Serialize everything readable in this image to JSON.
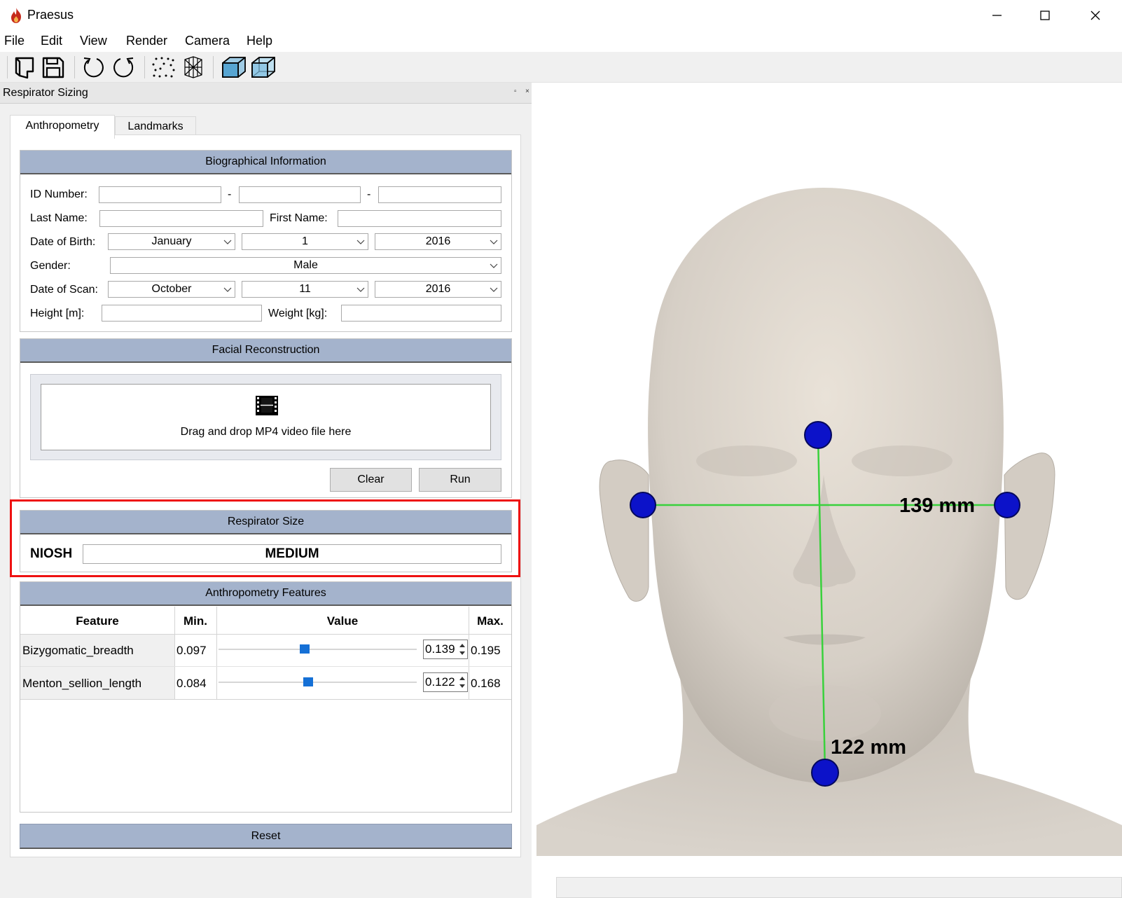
{
  "window": {
    "title": "Praesus"
  },
  "menu": [
    "File",
    "Edit",
    "View",
    "Render",
    "Camera",
    "Help"
  ],
  "toolbar": {
    "icons": [
      "open-file-icon",
      "save-icon",
      "rotate-left-icon",
      "rotate-right-icon",
      "point-cloud-icon",
      "wireframe-icon",
      "solid-cube-icon",
      "transparent-cube-icon"
    ]
  },
  "dock": {
    "title": "Respirator Sizing",
    "tabs": [
      "Anthropometry",
      "Landmarks"
    ],
    "bio": {
      "header": "Biographical Information",
      "id_label": "ID Number:",
      "id_sep": "-",
      "last_name_label": "Last Name:",
      "first_name_label": "First Name:",
      "dob_label": "Date of Birth:",
      "dob": {
        "month": "January",
        "day": "1",
        "year": "2016"
      },
      "gender_label": "Gender:",
      "gender": "Male",
      "scan_label": "Date of Scan:",
      "scan": {
        "month": "October",
        "day": "11",
        "year": "2016"
      },
      "height_label": "Height [m]:",
      "weight_label": "Weight [kg]:"
    },
    "facial": {
      "header": "Facial Reconstruction",
      "drop_text": "Drag and drop MP4 video file here",
      "clear": "Clear",
      "run": "Run"
    },
    "respirator": {
      "header": "Respirator Size",
      "standard": "NIOSH",
      "size": "MEDIUM"
    },
    "features": {
      "header": "Anthropometry Features",
      "columns": [
        "Feature",
        "Min.",
        "Value",
        "Max."
      ],
      "rows": [
        {
          "name": "Bizygomatic_breadth",
          "min": "0.097",
          "value": "0.139",
          "max": "0.195",
          "fraction": 0.43
        },
        {
          "name": "Menton_sellion_length",
          "min": "0.084",
          "value": "0.122",
          "max": "0.168",
          "fraction": 0.45
        }
      ],
      "reset": "Reset"
    }
  },
  "viewport": {
    "measure_horizontal": "139 mm",
    "measure_vertical": "122 mm"
  }
}
